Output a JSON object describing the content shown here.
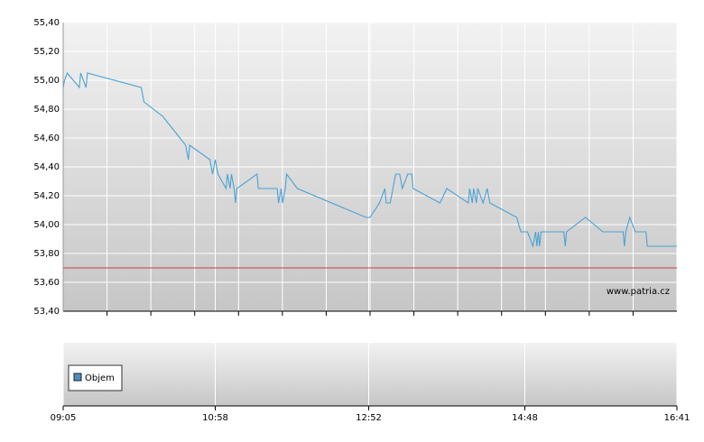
{
  "chart_data": {
    "type": "line",
    "x": [
      "09:05",
      "09:06",
      "09:08",
      "09:17",
      "09:18",
      "09:22",
      "09:23",
      "10:03",
      "10:05",
      "10:19",
      "10:36",
      "10:38",
      "10:39",
      "10:54",
      "10:56",
      "10:58",
      "11:00",
      "11:06",
      "11:07",
      "11:09",
      "11:10",
      "11:12",
      "11:13",
      "11:14",
      "11:29",
      "11:30",
      "11:44",
      "11:45",
      "11:47",
      "11:48",
      "11:50",
      "11:51",
      "11:59",
      "12:50",
      "12:53",
      "13:00",
      "13:04",
      "13:05",
      "13:08",
      "13:12",
      "13:15",
      "13:17",
      "13:21",
      "13:24",
      "13:25",
      "13:45",
      "13:50",
      "14:06",
      "14:07",
      "14:09",
      "14:10",
      "14:12",
      "14:13",
      "14:17",
      "14:20",
      "14:22",
      "14:42",
      "14:45",
      "14:50",
      "14:54",
      "14:56",
      "14:57",
      "14:58",
      "14:59",
      "15:00",
      "15:17",
      "15:18",
      "15:19",
      "15:33",
      "15:46",
      "16:01",
      "16:02",
      "16:03",
      "16:06",
      "16:10",
      "16:18",
      "16:19",
      "16:41"
    ],
    "series": [
      {
        "color": "#4aa3d3",
        "values": [
          54.95,
          55.0,
          55.05,
          54.95,
          55.05,
          54.95,
          55.05,
          54.95,
          54.85,
          54.75,
          54.55,
          54.45,
          54.55,
          54.45,
          54.35,
          54.45,
          54.35,
          54.25,
          54.35,
          54.25,
          54.35,
          54.25,
          54.15,
          54.25,
          54.35,
          54.25,
          54.25,
          54.15,
          54.25,
          54.15,
          54.25,
          54.35,
          54.25,
          54.05,
          54.05,
          54.15,
          54.25,
          54.15,
          54.15,
          54.35,
          54.35,
          54.25,
          54.35,
          54.35,
          54.25,
          54.15,
          54.25,
          54.15,
          54.25,
          54.15,
          54.25,
          54.15,
          54.25,
          54.15,
          54.25,
          54.15,
          54.05,
          53.95,
          53.95,
          53.85,
          53.95,
          53.85,
          53.95,
          53.85,
          53.95,
          53.95,
          53.85,
          53.95,
          54.05,
          53.95,
          53.95,
          53.85,
          53.95,
          54.05,
          53.95,
          53.95,
          53.85,
          53.85
        ]
      }
    ],
    "xlim": [
      "09:05",
      "16:41"
    ],
    "xticks": [
      "09:05",
      "10:58",
      "12:52",
      "14:48",
      "16:41"
    ],
    "ylim": [
      53.4,
      55.4
    ],
    "yticks": [
      {
        "value": 55.4,
        "label": "55,40"
      },
      {
        "value": 55.2,
        "label": "55,20"
      },
      {
        "value": 55.0,
        "label": "55,00"
      },
      {
        "value": 54.8,
        "label": "54,80"
      },
      {
        "value": 54.6,
        "label": "54,60"
      },
      {
        "value": 54.4,
        "label": "54,40"
      },
      {
        "value": 54.2,
        "label": "54,20"
      },
      {
        "value": 54.0,
        "label": "54,00"
      },
      {
        "value": 53.8,
        "label": "53,80"
      },
      {
        "value": 53.6,
        "label": "53,60"
      },
      {
        "value": 53.4,
        "label": "53,40"
      }
    ],
    "reference_line": {
      "value": 53.7,
      "color": "#d04040"
    },
    "grid": true,
    "watermark": "www.patria.cz",
    "volume_legend": {
      "name": "Objem",
      "color": "#4a8fc4"
    }
  }
}
